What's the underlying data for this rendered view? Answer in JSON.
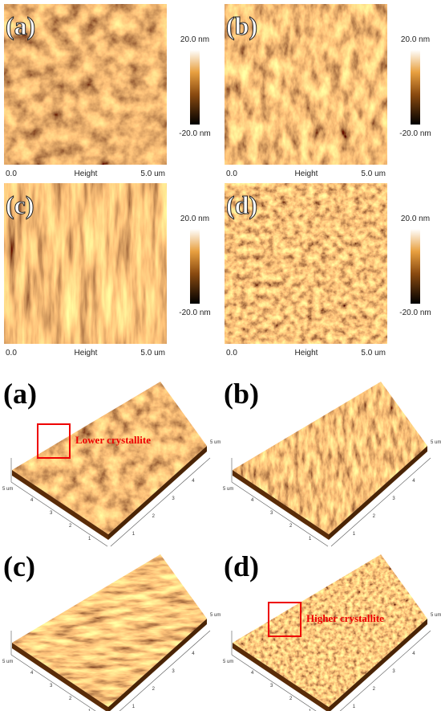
{
  "top_panels": [
    {
      "label": "(a)",
      "scale_max": "20.0 nm",
      "scale_min": "-20.0 nm",
      "x_start": "0.0",
      "x_label": "Height",
      "x_end": "5.0 um"
    },
    {
      "label": "(b)",
      "scale_max": "20.0 nm",
      "scale_min": "-20.0 nm",
      "x_start": "0.0",
      "x_label": "Height",
      "x_end": "5.0 um"
    },
    {
      "label": "(c)",
      "scale_max": "20.0 nm",
      "scale_min": "-20.0 nm",
      "x_start": "0.0",
      "x_label": "Height",
      "x_end": "5.0 um"
    },
    {
      "label": "(d)",
      "scale_max": "20.0 nm",
      "scale_min": "-20.0 nm",
      "x_start": "0.0",
      "x_label": "Height",
      "x_end": "5.0 um"
    }
  ],
  "bottom_panels": [
    {
      "label": "(a)",
      "annotation": "Lower crystallite"
    },
    {
      "label": "(b)"
    },
    {
      "label": "(c)"
    },
    {
      "label": "(d)",
      "annotation": "Higher crystallite"
    }
  ],
  "axis_3d": {
    "unit": "5 um",
    "ticks": [
      "1",
      "2",
      "3",
      "4"
    ]
  }
}
